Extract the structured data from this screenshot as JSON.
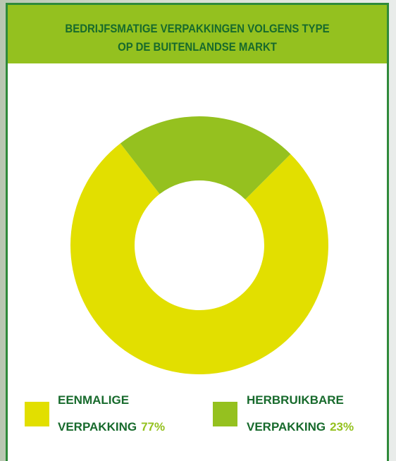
{
  "chart_data": {
    "type": "pie",
    "title": [
      "BEDRIJFSMATIGE VERPAKKINGEN VOLGENS TYPE",
      "OP DE BUITENLANDSE MARKT"
    ],
    "categories": [
      "EENMALIGE VERPAKKING",
      "HERBRUIKBARE VERPAKKING"
    ],
    "values": [
      77,
      23
    ],
    "value_labels": [
      "77%",
      "23%"
    ],
    "colors": [
      "#e2df00",
      "#95c11f"
    ]
  }
}
